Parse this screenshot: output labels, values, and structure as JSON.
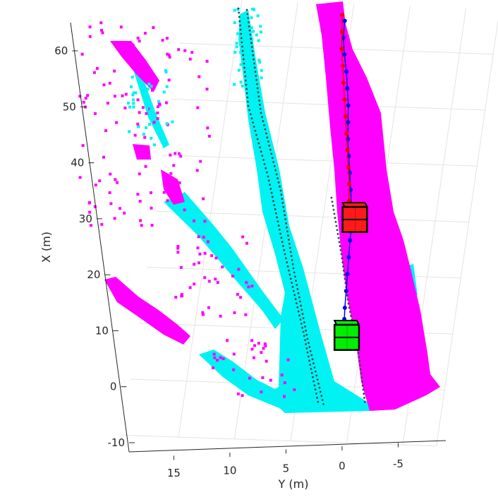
{
  "chart_data": {
    "type": "scatter",
    "view": "3d-perspective-top",
    "xlabel": "Y (m)",
    "ylabel": "X (m)",
    "x_axis_reversed": true,
    "xlim": [
      -8,
      20
    ],
    "ylim": [
      -10,
      65
    ],
    "x_ticks": [
      {
        "value": 15,
        "label": "15"
      },
      {
        "value": 10,
        "label": "10"
      },
      {
        "value": 5,
        "label": "5"
      },
      {
        "value": 0,
        "label": "0"
      },
      {
        "value": -5,
        "label": "-5"
      }
    ],
    "y_ticks": [
      {
        "value": -10,
        "label": "-10"
      },
      {
        "value": 0,
        "label": "0"
      },
      {
        "value": 10,
        "label": "10"
      },
      {
        "value": 20,
        "label": "20"
      },
      {
        "value": 30,
        "label": "30"
      },
      {
        "value": 40,
        "label": "40"
      },
      {
        "value": 50,
        "label": "50"
      },
      {
        "value": 60,
        "label": "60"
      }
    ],
    "grid": true,
    "legend": "none",
    "colors": {
      "ground_points": "#00f2f2",
      "obstacle_points": "#ff00ff",
      "lane_points": "#2a4a4a",
      "ego_trajectory": "#0000ee",
      "lead_trajectory": "#ee0000",
      "ego_box": "#00ee00",
      "lead_box": "#ff1a1a",
      "grid": "#e3e3e3",
      "axis": "#262626"
    },
    "series": [
      {
        "kind": "line",
        "color": "#0000ee",
        "points": [
          [
            5.6,
            65
          ],
          [
            5.5,
            62
          ],
          [
            5.2,
            59
          ],
          [
            4.8,
            56
          ],
          [
            4.5,
            53
          ],
          [
            4.2,
            50
          ],
          [
            4.0,
            47
          ],
          [
            3.8,
            44
          ],
          [
            3.5,
            41
          ],
          [
            3.2,
            38
          ],
          [
            2.9,
            35
          ],
          [
            2.6,
            32
          ],
          [
            2.4,
            29
          ],
          [
            2.3,
            26
          ],
          [
            2.2,
            23
          ],
          [
            2.1,
            20
          ],
          [
            2.0,
            17
          ],
          [
            1.9,
            14
          ],
          [
            1.8,
            12
          ]
        ]
      },
      {
        "kind": "line",
        "color": "#ee0000",
        "points": [
          [
            5.9,
            66
          ],
          [
            5.7,
            63
          ],
          [
            5.5,
            60
          ],
          [
            5.2,
            57
          ],
          [
            4.9,
            54
          ],
          [
            4.6,
            51
          ],
          [
            4.3,
            48
          ],
          [
            4.0,
            45
          ],
          [
            3.7,
            42
          ],
          [
            3.4,
            39
          ],
          [
            3.1,
            36
          ],
          [
            2.9,
            33
          ],
          [
            2.7,
            31
          ]
        ]
      }
    ],
    "boxes": [
      {
        "label": "",
        "color": "#00ee00",
        "x_center": 1.5,
        "y_center": 9.5,
        "width": 2.0,
        "length": 4.5
      },
      {
        "label": "",
        "color": "#ff1a1a",
        "x_center": 2.3,
        "y_center": 30.5,
        "width": 2.0,
        "length": 4.5
      }
    ]
  }
}
